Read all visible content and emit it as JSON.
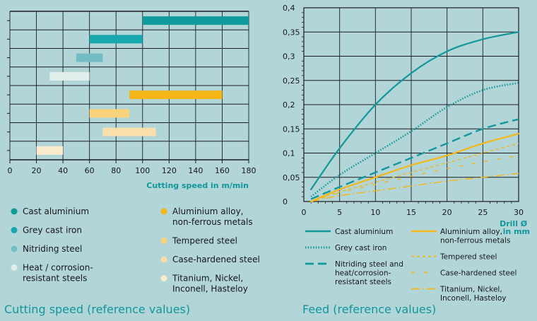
{
  "colors": {
    "background": "#b2d5d8",
    "grid": "#1b1b20",
    "accent_text": "#11979b"
  },
  "chart_data": [
    {
      "type": "bar",
      "orientation": "horizontal",
      "title": "Cutting speed (reference values)",
      "xlabel": "Cutting speed in m/min",
      "xlim": [
        0,
        180
      ],
      "x_ticks": [
        "0",
        "20",
        "40",
        "60",
        "80",
        "100",
        "120",
        "140",
        "160",
        "180"
      ],
      "grid": true,
      "series": [
        {
          "name": "Cast aluminium",
          "range": [
            100,
            180
          ],
          "color": "#0f9a9c"
        },
        {
          "name": "Grey cast iron",
          "range": [
            60,
            100
          ],
          "color": "#17a8ad"
        },
        {
          "name": "Nitriding steel",
          "range": [
            50,
            70
          ],
          "color": "#74bcc3"
        },
        {
          "name": "Heat / corrosion-resistant steels",
          "range": [
            30,
            60
          ],
          "color": "#e1eeec"
        },
        {
          "name": "Aluminium alloy, non-ferrous metals",
          "range": [
            90,
            160
          ],
          "color": "#f4b717"
        },
        {
          "name": "Tempered steel",
          "range": [
            60,
            90
          ],
          "color": "#f9d27c"
        },
        {
          "name": "Case-hardened steel",
          "range": [
            70,
            110
          ],
          "color": "#fadfab"
        },
        {
          "name": "Titanium, Nickel, Inconell, Hasteloy",
          "range": [
            20,
            40
          ],
          "color": "#fbebcd"
        }
      ],
      "legend": {
        "placement": "bottom",
        "left": [
          {
            "label": [
              "Cast aluminium"
            ],
            "color": "#0f9a9c"
          },
          {
            "label": [
              "Grey cast iron"
            ],
            "color": "#17a8ad"
          },
          {
            "label": [
              "Nitriding steel"
            ],
            "color": "#74bcc3"
          },
          {
            "label": [
              "Heat / corrosion-",
              "resistant steels"
            ],
            "color": "#e1eeec"
          }
        ],
        "right": [
          {
            "label": [
              "Aluminium alloy,",
              "non-ferrous metals"
            ],
            "color": "#f4b717"
          },
          {
            "label": [
              "Tempered steel"
            ],
            "color": "#f9d27c"
          },
          {
            "label": [
              "Case-hardened steel"
            ],
            "color": "#fadfab"
          },
          {
            "label": [
              "Titanium, Nickel,",
              "Inconell, Hasteloy"
            ],
            "color": "#fbebcd"
          }
        ]
      }
    },
    {
      "type": "line",
      "title": "Feed (reference values)",
      "xlabel": [
        "Drill Ø",
        "in mm"
      ],
      "xlim": [
        0,
        30
      ],
      "ylim": [
        0,
        0.4
      ],
      "x_ticks": [
        "0",
        "5",
        "10",
        "15",
        "20",
        "25",
        "30"
      ],
      "y_ticks": [
        "0",
        "0,05",
        "0,1",
        "0,15",
        "0,2",
        "0,25",
        "0,3",
        "0,35",
        "0,4"
      ],
      "grid": true,
      "series": [
        {
          "name": "Cast aluminium",
          "color": "#11989b",
          "style": "solid",
          "x": [
            1,
            5,
            10,
            15,
            20,
            25,
            30
          ],
          "y": [
            0.025,
            0.11,
            0.2,
            0.265,
            0.31,
            0.335,
            0.35
          ]
        },
        {
          "name": "Grey cast iron",
          "color": "#11989b",
          "style": "dotted",
          "x": [
            1,
            5,
            10,
            15,
            20,
            25,
            30
          ],
          "y": [
            0.01,
            0.055,
            0.1,
            0.145,
            0.195,
            0.23,
            0.245
          ]
        },
        {
          "name": "Nitriding steel and heat/corrosion-resistant steels",
          "color": "#11989b",
          "style": "dashed",
          "x": [
            1,
            5,
            10,
            15,
            20,
            25,
            30
          ],
          "y": [
            0.005,
            0.03,
            0.06,
            0.09,
            0.12,
            0.15,
            0.17
          ]
        },
        {
          "name": "Aluminium alloy, non-ferrous metals",
          "color": "#f4b717",
          "style": "solid",
          "x": [
            1,
            5,
            10,
            15,
            20,
            25,
            30
          ],
          "y": [
            0.0,
            0.025,
            0.05,
            0.075,
            0.095,
            0.12,
            0.14
          ]
        },
        {
          "name": "Tempered steel",
          "color": "#f4b717",
          "style": "short-dash",
          "x": [
            1,
            5,
            10,
            15,
            20,
            25,
            30
          ],
          "y": [
            0.0,
            0.02,
            0.04,
            0.06,
            0.08,
            0.1,
            0.12
          ]
        },
        {
          "name": "Case-hardened steel",
          "color": "#f4b717",
          "style": "sparse-dash",
          "x": [
            1,
            5,
            10,
            15,
            20,
            25,
            30
          ],
          "y": [
            0.0,
            0.018,
            0.035,
            0.052,
            0.068,
            0.082,
            0.095
          ]
        },
        {
          "name": "Titanium, Nickel, Inconell, Hasteloy",
          "color": "#f4b717",
          "style": "dash-dot",
          "x": [
            1,
            5,
            10,
            15,
            20,
            25,
            30
          ],
          "y": [
            0.0,
            0.012,
            0.022,
            0.032,
            0.042,
            0.05,
            0.058
          ]
        }
      ],
      "legend": {
        "placement": "bottom",
        "left": [
          {
            "label": [
              "Cast aluminium"
            ],
            "color": "#11989b",
            "style": "solid"
          },
          {
            "label": [
              "Grey cast iron"
            ],
            "color": "#11989b",
            "style": "dotted"
          },
          {
            "label": [
              "Nitriding steel and",
              "heat/corrosion-",
              "resistant steels"
            ],
            "color": "#11989b",
            "style": "dashed"
          }
        ],
        "right": [
          {
            "label": [
              "Aluminium alloy,",
              "non-ferrous metals"
            ],
            "color": "#f4b717",
            "style": "solid"
          },
          {
            "label": [
              "Tempered steel"
            ],
            "color": "#f4b717",
            "style": "short-dash"
          },
          {
            "label": [
              "Case-hardened steel"
            ],
            "color": "#f4b717",
            "style": "sparse-dash"
          },
          {
            "label": [
              "Titanium, Nickel,",
              "Inconell, Hasteloy"
            ],
            "color": "#f4b717",
            "style": "dash-dot"
          }
        ]
      }
    }
  ]
}
